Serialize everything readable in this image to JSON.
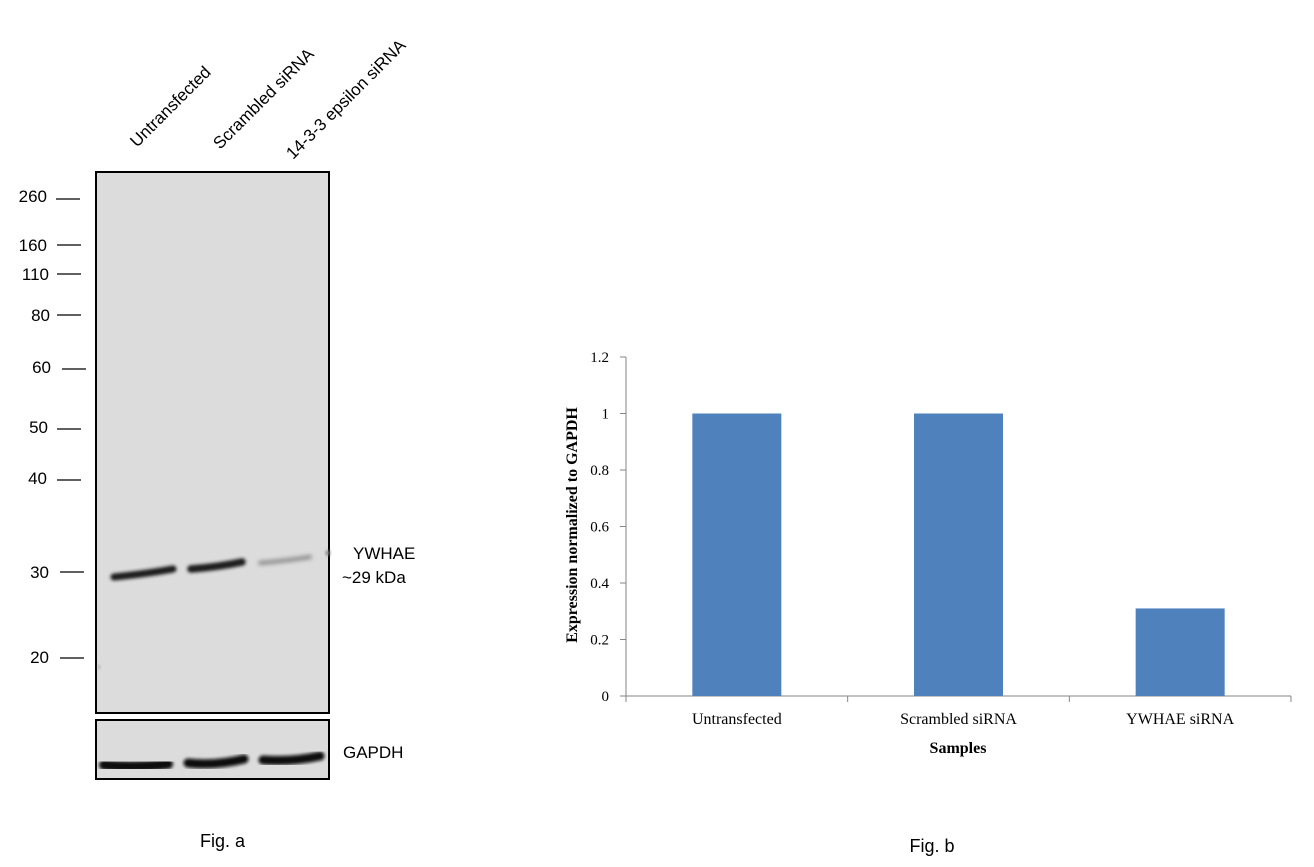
{
  "figure_a": {
    "lanes": [
      "Untransfected",
      "Scrambled siRNA",
      "14-3-3 epsilon siRNA"
    ],
    "markers": [
      "260",
      "160",
      "110",
      "80",
      "60",
      "50",
      "40",
      "30",
      "20"
    ],
    "band_label": "YWHAE",
    "band_size": "~29 kDa",
    "loading_control": "GAPDH",
    "caption": "Fig. a"
  },
  "figure_b": {
    "caption": "Fig. b"
  },
  "chart_data": {
    "type": "bar",
    "categories": [
      "Untransfected",
      "Scrambled siRNA",
      "YWHAE siRNA"
    ],
    "values": [
      1.0,
      1.0,
      0.31
    ],
    "xlabel": "Samples",
    "ylabel": "Expression  normalized to GAPDH",
    "ylim": [
      0,
      1.2
    ],
    "yticks": [
      "0",
      "0.2",
      "0.4",
      "0.6",
      "0.8",
      "1",
      "1.2"
    ],
    "bar_color": "#4f81bd",
    "grid": false
  }
}
